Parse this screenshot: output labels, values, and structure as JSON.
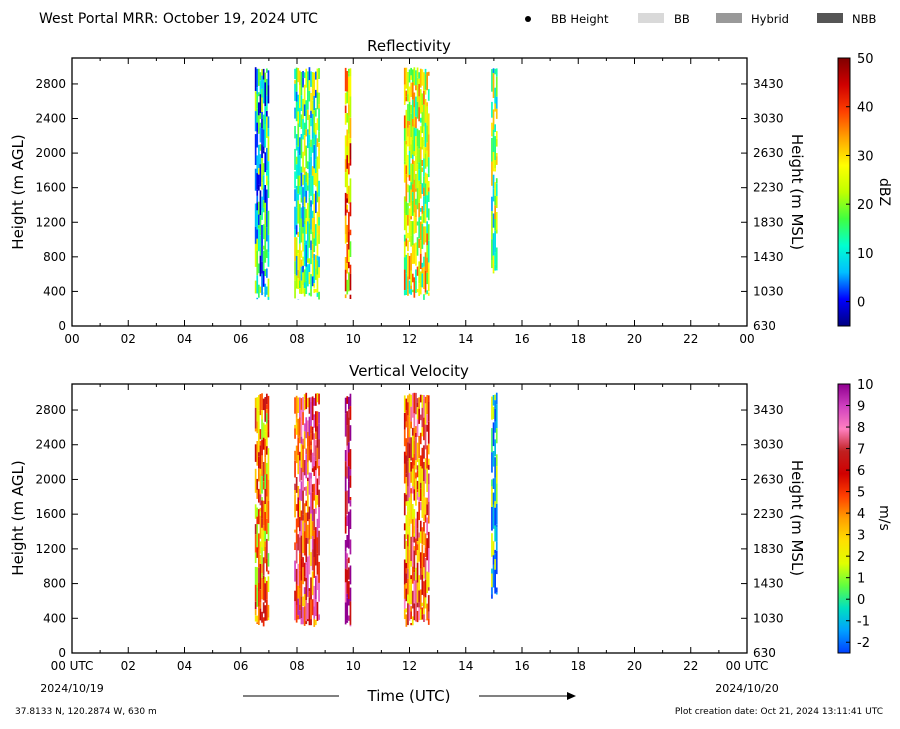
{
  "header": {
    "title": "West Portal MRR:  October 19, 2024 UTC",
    "legend": [
      {
        "label": "BB Height",
        "kind": "dot",
        "color": "#000000"
      },
      {
        "label": "BB",
        "kind": "box",
        "color": "#d9d9d9"
      },
      {
        "label": "Hybrid",
        "kind": "box",
        "color": "#999999"
      },
      {
        "label": "NBB",
        "kind": "box",
        "color": "#555555"
      }
    ]
  },
  "chart_data": [
    {
      "type": "heatmap",
      "title": "Reflectivity",
      "xlabel": "",
      "ylabel": "Height (m AGL)",
      "ylabel_right": "Height (m MSL)",
      "xlim": [
        0,
        24
      ],
      "ylim": [
        0,
        3100
      ],
      "x_ticks": [
        "00",
        "02",
        "04",
        "06",
        "08",
        "10",
        "12",
        "14",
        "16",
        "18",
        "20",
        "22",
        "00"
      ],
      "y_ticks": [
        0,
        400,
        800,
        1200,
        1600,
        2000,
        2400,
        2800
      ],
      "y_ticks_right": [
        "630",
        "1030",
        "1430",
        "1830",
        "2230",
        "2630",
        "3030",
        "3430"
      ],
      "colorbar": {
        "label": "dBZ",
        "range": [
          -5,
          50
        ],
        "ticks": [
          0,
          10,
          20,
          30,
          40,
          50
        ],
        "stops": [
          "#000080",
          "#0000ff",
          "#00bfff",
          "#00ffd0",
          "#40ff40",
          "#c0ff00",
          "#ffff00",
          "#ffa500",
          "#ff4000",
          "#d00000",
          "#800000"
        ]
      },
      "precip_periods": [
        {
          "start": 6.5,
          "end": 7.0,
          "bottom": 300,
          "top": 3000,
          "mean": 12
        },
        {
          "start": 7.9,
          "end": 8.8,
          "bottom": 300,
          "top": 3000,
          "mean": 17
        },
        {
          "start": 9.7,
          "end": 9.9,
          "bottom": 300,
          "top": 3000,
          "mean": 33
        },
        {
          "start": 11.8,
          "end": 12.7,
          "bottom": 300,
          "top": 3000,
          "mean": 24
        },
        {
          "start": 14.9,
          "end": 15.1,
          "bottom": 600,
          "top": 3000,
          "mean": 19
        }
      ]
    },
    {
      "type": "heatmap",
      "title": "Vertical Velocity",
      "xlabel": "Time (UTC)",
      "ylabel": "Height (m AGL)",
      "ylabel_right": "Height (m MSL)",
      "xlim": [
        0,
        24
      ],
      "ylim": [
        0,
        3100
      ],
      "x_ticks": [
        "00 UTC",
        "02",
        "04",
        "06",
        "08",
        "10",
        "12",
        "14",
        "16",
        "18",
        "20",
        "22",
        "00 UTC"
      ],
      "x_subticks": {
        "first": "2024/10/19",
        "last": "2024/10/20"
      },
      "y_ticks": [
        0,
        400,
        800,
        1200,
        1600,
        2000,
        2400,
        2800
      ],
      "y_ticks_right": [
        "630",
        "1030",
        "1430",
        "1830",
        "2230",
        "2630",
        "3030",
        "3430"
      ],
      "colorbar": {
        "label": "m/s",
        "range": [
          -2.5,
          10
        ],
        "ticks": [
          -2,
          -1,
          0,
          1,
          2,
          3,
          4,
          5,
          6,
          7,
          8,
          9,
          10
        ],
        "stops": [
          "#0040ff",
          "#00a0ff",
          "#00e0c0",
          "#60ff40",
          "#e0ff00",
          "#ffe000",
          "#ffa000",
          "#ff4000",
          "#d00000",
          "#c02020",
          "#ff80c0",
          "#d040c0",
          "#900090"
        ]
      },
      "precip_periods": [
        {
          "start": 6.5,
          "end": 7.0,
          "bottom": 300,
          "top": 3000,
          "mean": 4
        },
        {
          "start": 7.9,
          "end": 8.8,
          "bottom": 300,
          "top": 3000,
          "mean": 6
        },
        {
          "start": 9.7,
          "end": 9.9,
          "bottom": 300,
          "top": 3000,
          "mean": 9
        },
        {
          "start": 11.8,
          "end": 12.7,
          "bottom": 300,
          "top": 3000,
          "mean": 5
        },
        {
          "start": 14.9,
          "end": 15.1,
          "bottom": 600,
          "top": 3000,
          "mean": -1
        }
      ]
    }
  ],
  "footer": {
    "location": "37.8133 N, 120.2874 W, 630 m",
    "created": "Plot creation date: Oct 21, 2024 13:11:41 UTC"
  }
}
